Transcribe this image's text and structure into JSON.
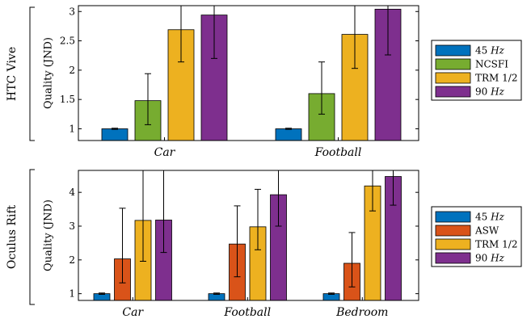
{
  "chart_data": [
    {
      "type": "bar",
      "group_label": "HTC Vive",
      "ylabel": "Quality (JND)",
      "ylim": [
        0.8,
        3.1
      ],
      "yticks": [
        1,
        1.5,
        2,
        2.5,
        3
      ],
      "ytick_labels": [
        "1",
        "1.5",
        "2",
        "2.5",
        "3"
      ],
      "categories": [
        "Car",
        "Football"
      ],
      "series": [
        {
          "name": "45 Hz",
          "name_parts": [
            "45 ",
            "Hz"
          ],
          "color": "#0072BD",
          "values": [
            1.0,
            1.0
          ],
          "err_low": [
            0.99,
            0.99
          ],
          "err_high": [
            1.01,
            1.01
          ]
        },
        {
          "name": "NCSFI",
          "name_parts": [
            "NCSFI",
            ""
          ],
          "color": "#77AC30",
          "values": [
            1.48,
            1.6
          ],
          "err_low": [
            1.07,
            1.25
          ],
          "err_high": [
            1.94,
            2.14
          ]
        },
        {
          "name": "TRM 1/2",
          "name_parts": [
            "TRM 1/2",
            ""
          ],
          "color": "#EDB120",
          "values": [
            2.69,
            2.61
          ],
          "err_low": [
            2.14,
            2.03
          ],
          "err_high": [
            3.1,
            3.1
          ]
        },
        {
          "name": "90 Hz",
          "name_parts": [
            "90 ",
            "Hz"
          ],
          "color": "#7E2F8E",
          "values": [
            2.94,
            3.04
          ],
          "err_low": [
            2.2,
            2.26
          ],
          "err_high": [
            3.1,
            3.1
          ]
        }
      ]
    },
    {
      "type": "bar",
      "group_label": "Oculus Rift",
      "ylabel": "Quality (JND)",
      "ylim": [
        0.8,
        4.65
      ],
      "yticks": [
        1,
        2,
        3,
        4
      ],
      "ytick_labels": [
        "1",
        "2",
        "3",
        "4"
      ],
      "categories": [
        "Car",
        "Football",
        "Bedroom"
      ],
      "series": [
        {
          "name": "45 Hz",
          "name_parts": [
            "45 ",
            "Hz"
          ],
          "color": "#0072BD",
          "values": [
            1.0,
            1.0,
            1.0
          ],
          "err_low": [
            0.98,
            0.98,
            0.98
          ],
          "err_high": [
            1.02,
            1.02,
            1.02
          ]
        },
        {
          "name": "ASW",
          "name_parts": [
            "ASW",
            ""
          ],
          "color": "#D95319",
          "values": [
            2.03,
            2.47,
            1.9
          ],
          "err_low": [
            1.32,
            1.5,
            1.2
          ],
          "err_high": [
            3.53,
            3.6,
            2.81
          ]
        },
        {
          "name": "TRM 1/2",
          "name_parts": [
            "TRM 1/2",
            ""
          ],
          "color": "#EDB120",
          "values": [
            3.17,
            2.98,
            4.19
          ],
          "err_low": [
            1.96,
            2.3,
            3.45
          ],
          "err_high": [
            4.65,
            4.09,
            4.65
          ]
        },
        {
          "name": "90 Hz",
          "name_parts": [
            "90 ",
            "Hz"
          ],
          "color": "#7E2F8E",
          "values": [
            3.18,
            3.93,
            4.47
          ],
          "err_low": [
            2.22,
            3.0,
            3.62
          ],
          "err_high": [
            4.65,
            4.65,
            4.65
          ]
        }
      ]
    }
  ]
}
